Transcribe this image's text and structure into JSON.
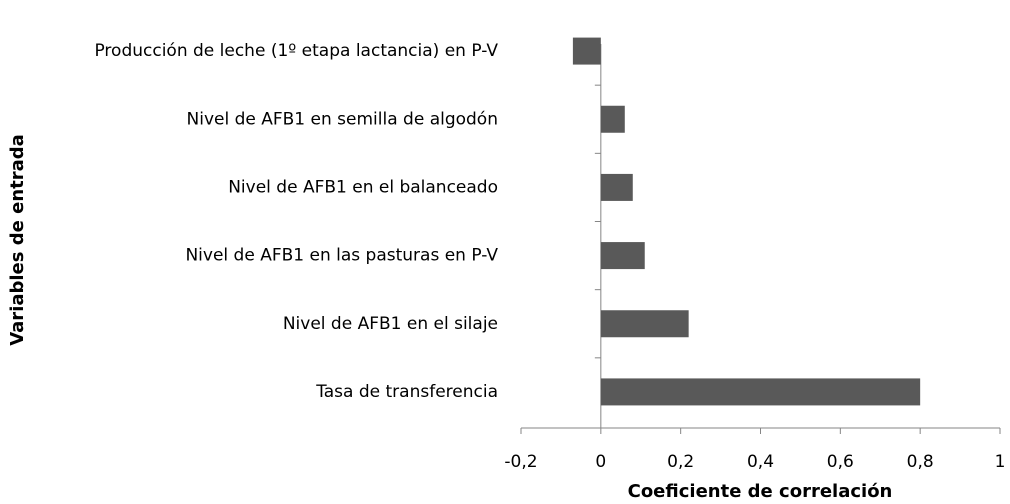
{
  "chart_data": {
    "type": "barh",
    "categories": [
      "Producción de leche (1º etapa lactancia) en P-V",
      "Nivel de AFB1 en semilla de algodón",
      "Nivel de AFB1 en el balanceado",
      "Nivel de AFB1 en las pasturas en P-V",
      "Nivel de AFB1 en el silaje",
      "Tasa de transferencia"
    ],
    "values": [
      -0.07,
      0.06,
      0.08,
      0.11,
      0.22,
      0.8
    ],
    "color": "#595959",
    "xlabel": "Coeficiente de correlación",
    "ylabel": "Variables de entrada",
    "xlim": [
      -0.2,
      1
    ],
    "xticks": [
      {
        "value": -0.2,
        "label": "-0,2"
      },
      0,
      {
        "value": 0.2,
        "label": "0,2"
      },
      {
        "value": 0.4,
        "label": "0,4"
      },
      {
        "value": 0.6,
        "label": "0,6"
      },
      {
        "value": 0.8,
        "label": "0,8"
      },
      1
    ],
    "grid": false
  }
}
